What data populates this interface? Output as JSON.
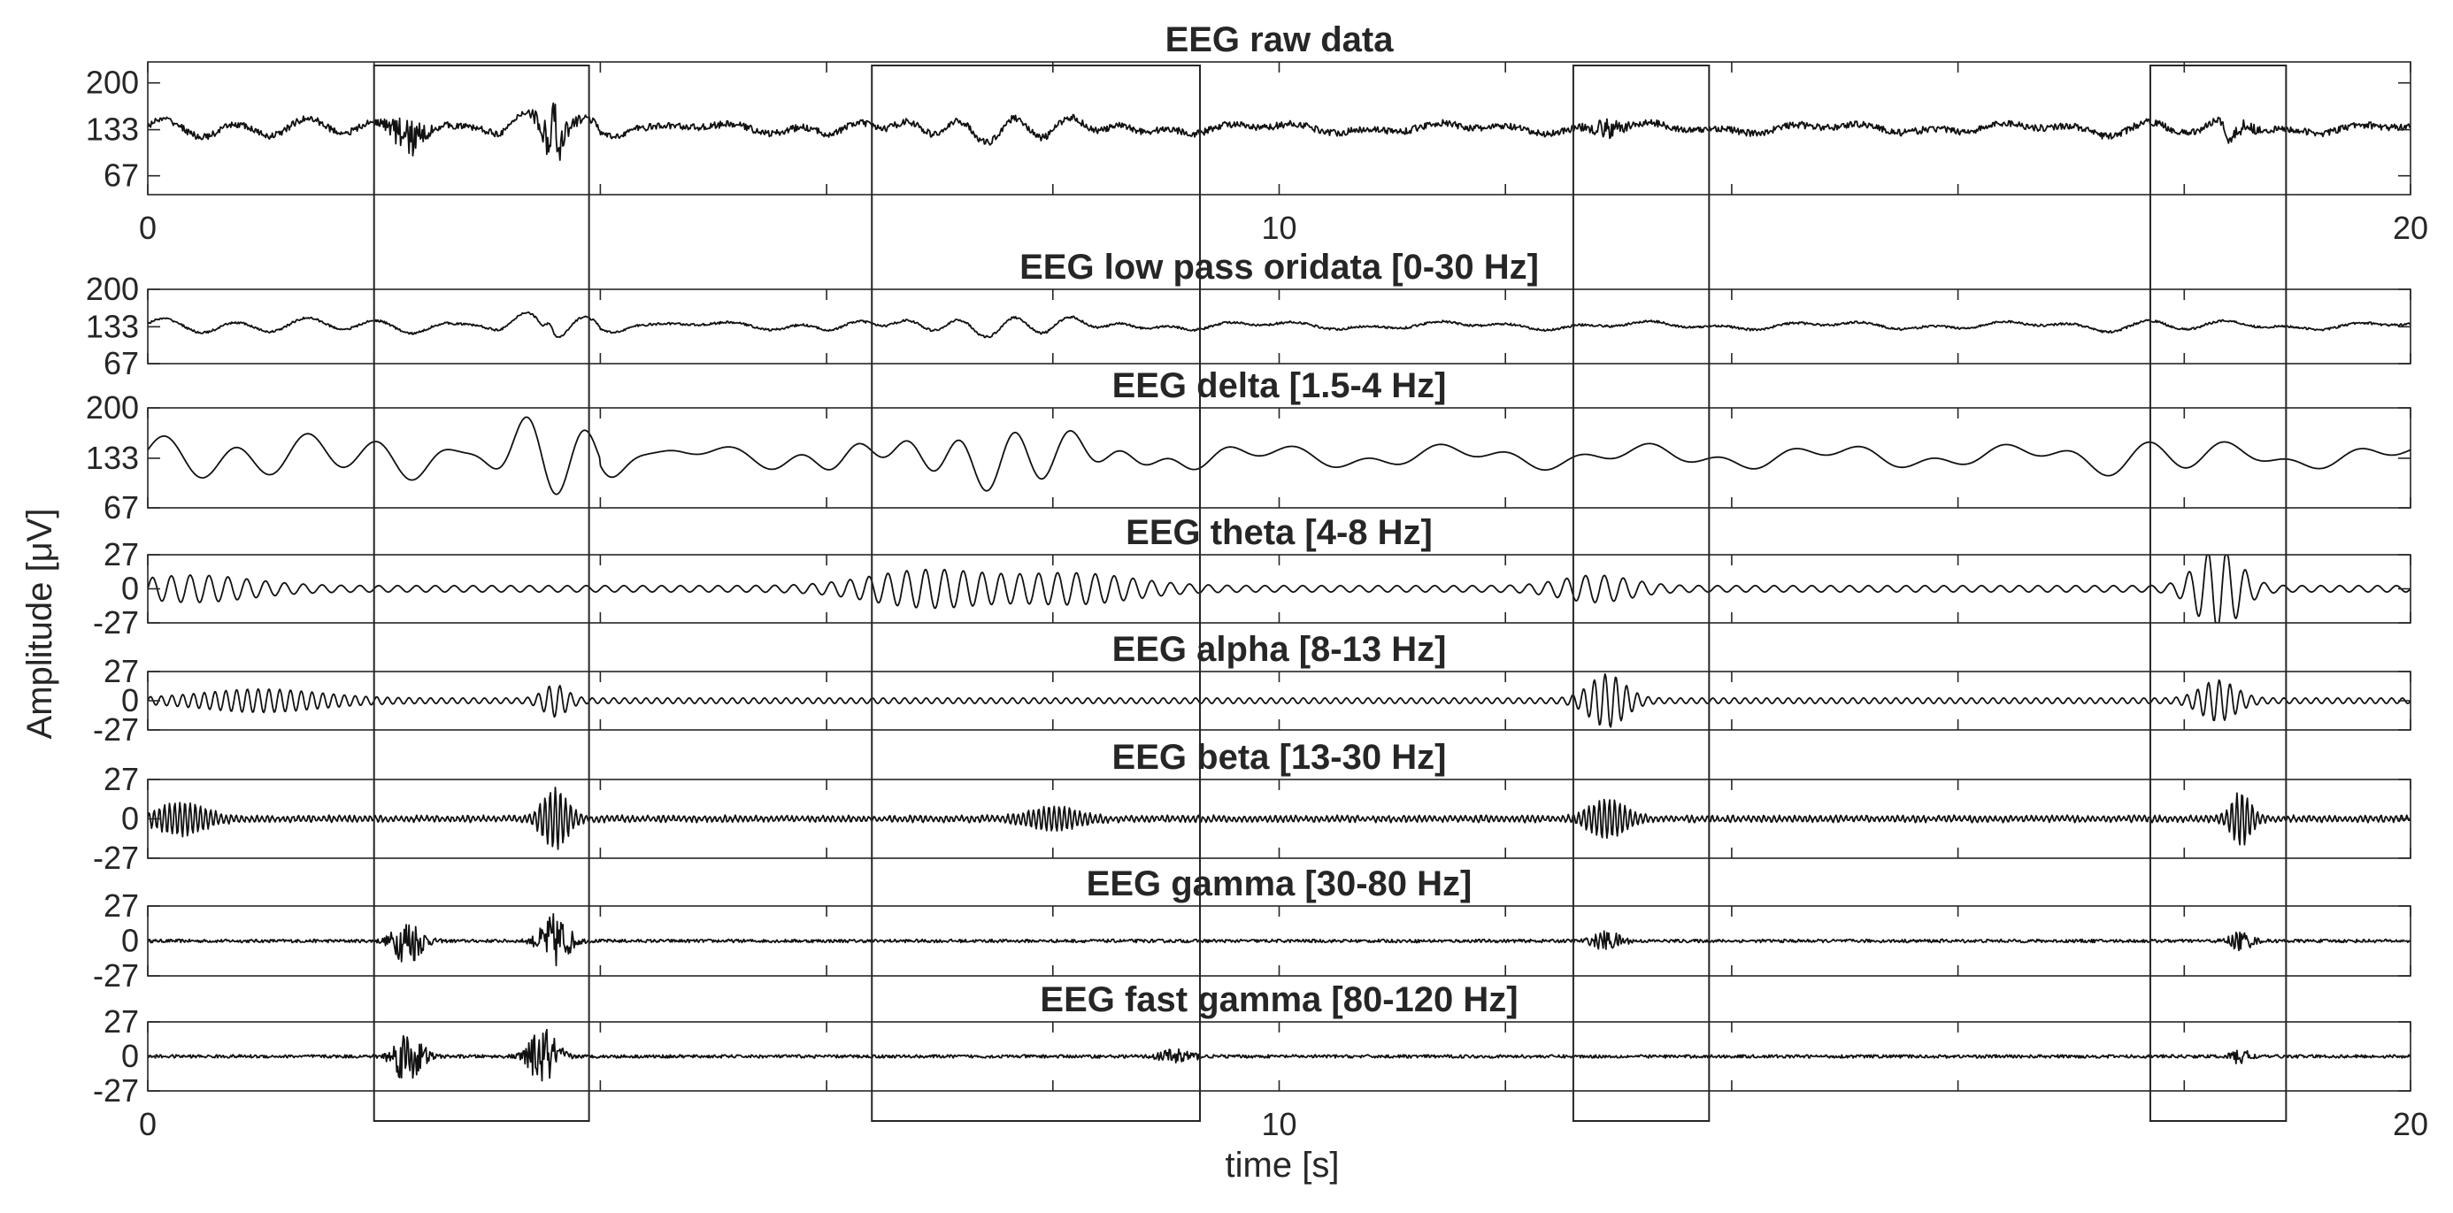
{
  "chart_data": {
    "type": "line",
    "xlabel": "time [s]",
    "ylabel": "Amplitude [μV]",
    "xlim": [
      0,
      20
    ],
    "xticks": [
      0,
      10,
      20
    ],
    "highlight_windows": [
      [
        2.0,
        3.9
      ],
      [
        6.4,
        9.3
      ],
      [
        12.6,
        13.8
      ],
      [
        17.7,
        18.9
      ]
    ],
    "panels": [
      {
        "title": "EEG raw data",
        "ylim": [
          40,
          230
        ],
        "yticks": [
          67,
          133,
          200
        ],
        "show_xticks": true
      },
      {
        "title": "EEG low pass oridata [0-30 Hz]",
        "ylim": [
          67,
          200
        ],
        "yticks": [
          67,
          133,
          200
        ],
        "show_xticks": false
      },
      {
        "title": "EEG delta [1.5-4 Hz]",
        "ylim": [
          67,
          200
        ],
        "yticks": [
          67,
          133,
          200
        ],
        "show_xticks": false
      },
      {
        "title": "EEG theta [4-8 Hz]",
        "ylim": [
          -27,
          27
        ],
        "yticks": [
          -27,
          0,
          27
        ],
        "show_xticks": false
      },
      {
        "title": "EEG alpha [8-13 Hz]",
        "ylim": [
          -27,
          27
        ],
        "yticks": [
          -27,
          0,
          27
        ],
        "show_xticks": false
      },
      {
        "title": "EEG beta [13-30 Hz]",
        "ylim": [
          -27,
          27
        ],
        "yticks": [
          -27,
          0,
          27
        ],
        "show_xticks": false
      },
      {
        "title": "EEG gamma [30-80 Hz]",
        "ylim": [
          -27,
          27
        ],
        "yticks": [
          -27,
          0,
          27
        ],
        "show_xticks": false
      },
      {
        "title": "EEG fast gamma [80-120 Hz]",
        "ylim": [
          -27,
          27
        ],
        "yticks": [
          -27,
          0,
          27
        ],
        "show_xticks": true
      }
    ]
  }
}
